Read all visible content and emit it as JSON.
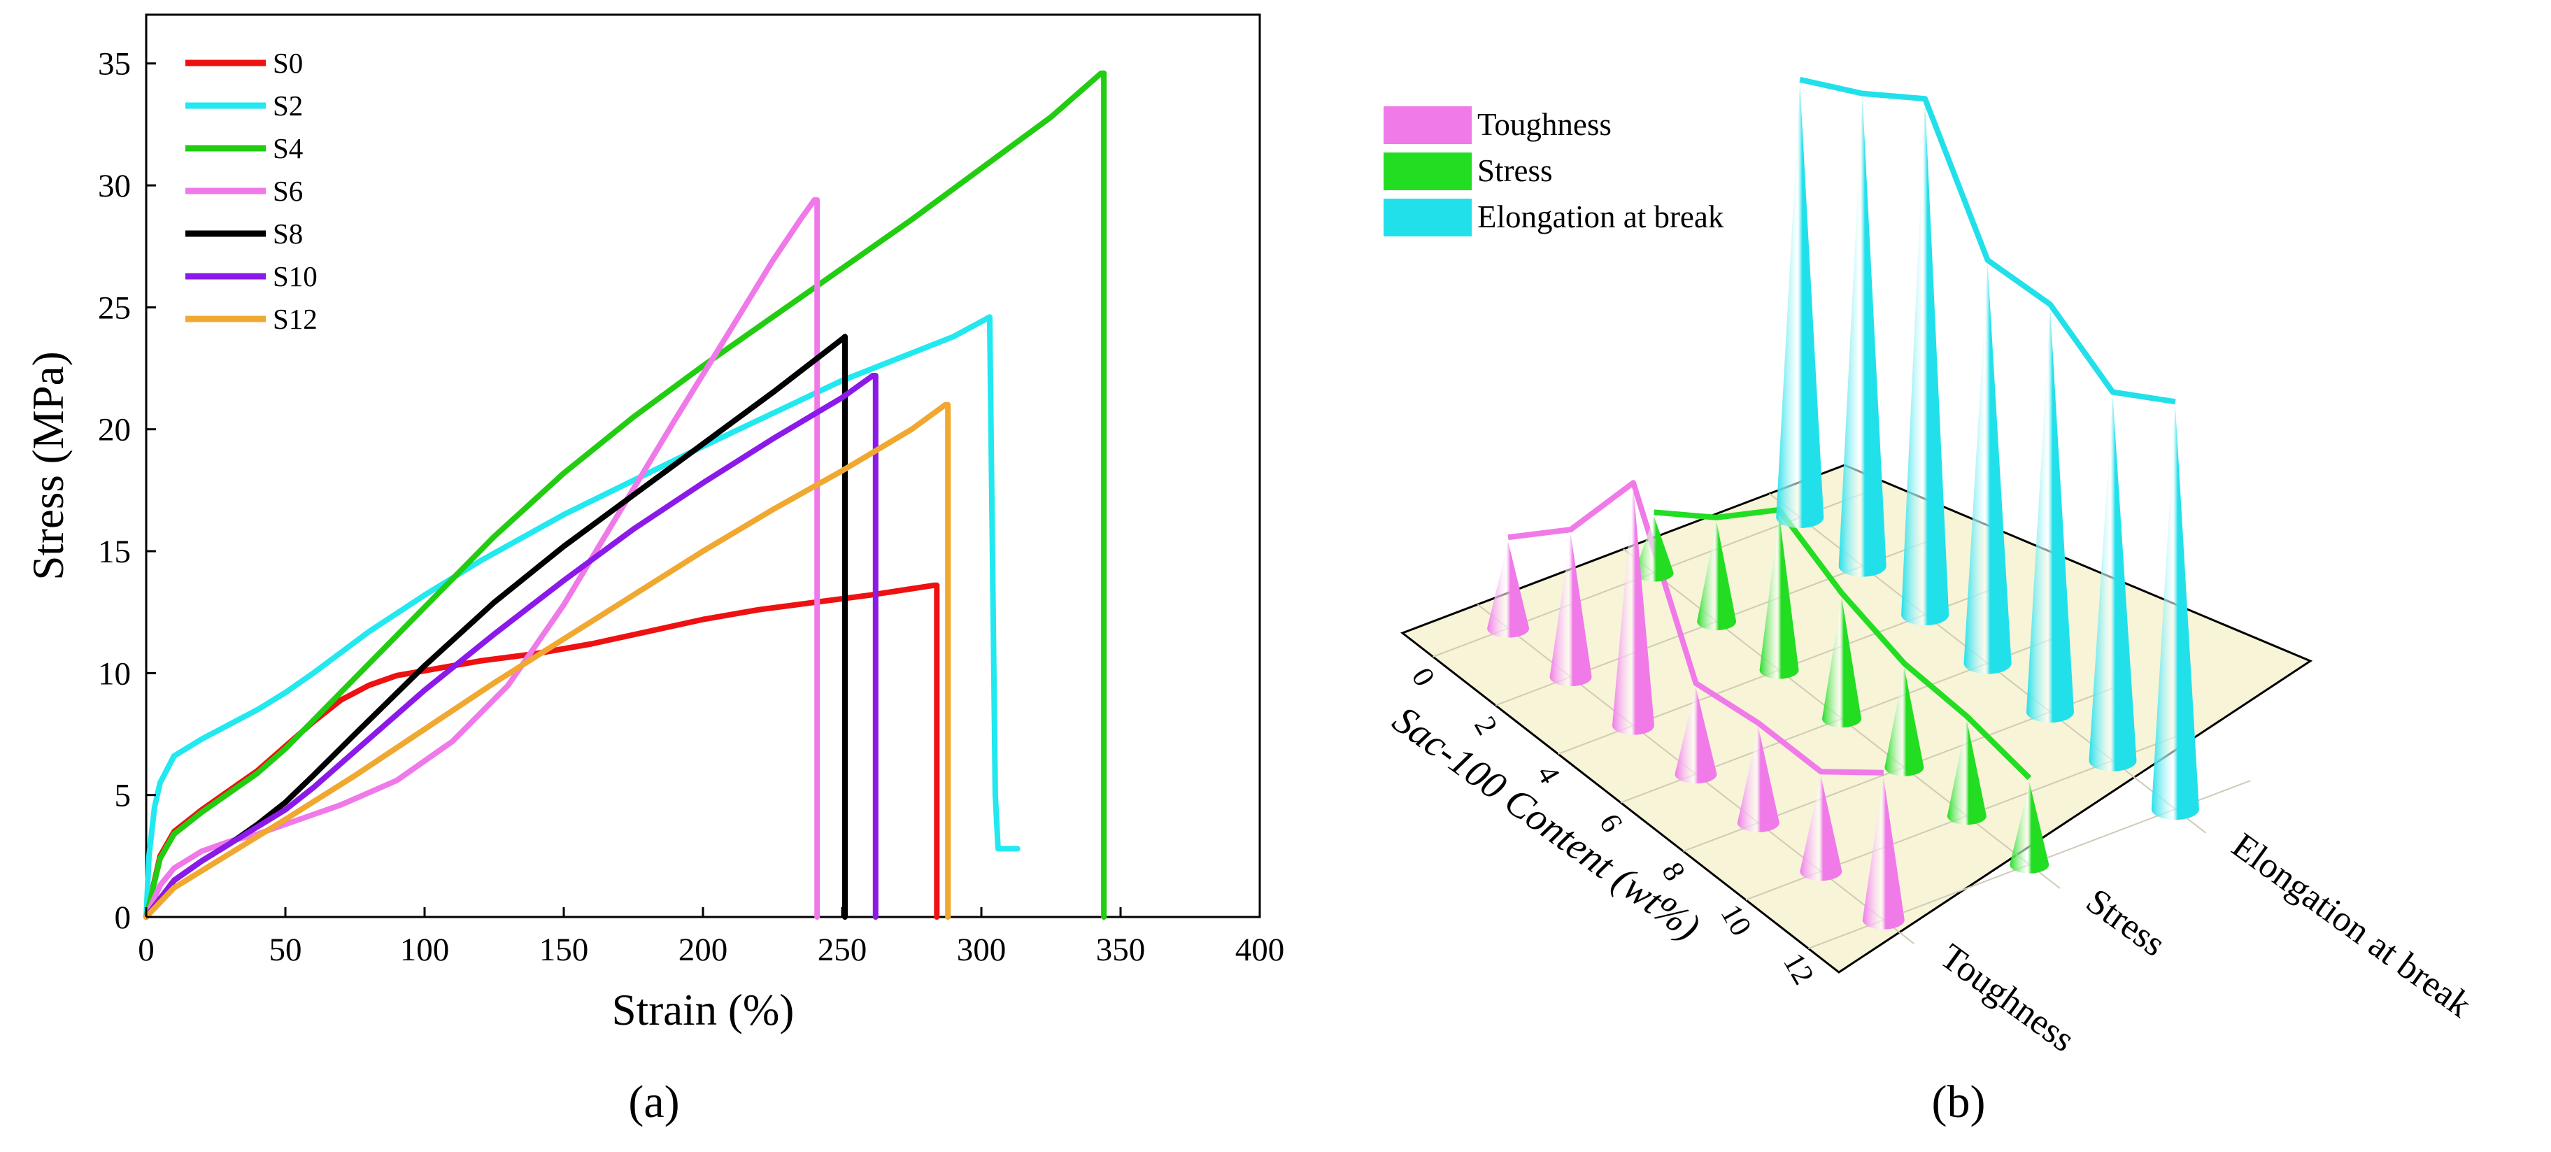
{
  "panel_labels": {
    "a": "(a)",
    "b": "(b)"
  },
  "chart_data": [
    {
      "type": "line",
      "title": "",
      "xlabel": "Strain (%)",
      "ylabel": "Stress (MPa)",
      "xlim": [
        0,
        400
      ],
      "ylim": [
        0,
        37
      ],
      "xticks": [
        0,
        50,
        100,
        150,
        200,
        250,
        300,
        350,
        400
      ],
      "yticks": [
        0,
        5,
        10,
        15,
        20,
        25,
        30,
        35
      ],
      "grid": false,
      "legend_position": "top-left",
      "series": [
        {
          "name": "S0",
          "color": "#ee1111",
          "x": [
            0,
            5,
            10,
            20,
            30,
            40,
            50,
            60,
            70,
            80,
            90,
            100,
            120,
            140,
            160,
            180,
            200,
            220,
            240,
            260,
            283,
            284,
            284
          ],
          "y": [
            0,
            2.5,
            3.5,
            4.4,
            5.2,
            6.0,
            7.0,
            8.0,
            8.9,
            9.5,
            9.9,
            10.1,
            10.5,
            10.8,
            11.2,
            11.7,
            12.2,
            12.6,
            12.9,
            13.2,
            13.6,
            13.6,
            0
          ]
        },
        {
          "name": "S2",
          "color": "#22e8f0",
          "x": [
            0,
            1,
            3,
            5,
            10,
            20,
            30,
            40,
            50,
            60,
            80,
            100,
            120,
            150,
            200,
            250,
            290,
            303,
            305,
            306,
            313
          ],
          "y": [
            0,
            2.5,
            4.5,
            5.5,
            6.6,
            7.3,
            7.9,
            8.5,
            9.2,
            10.0,
            11.7,
            13.2,
            14.6,
            16.5,
            19.3,
            22.0,
            23.8,
            24.6,
            5,
            2.8,
            2.8
          ]
        },
        {
          "name": "S4",
          "color": "#22cc11",
          "x": [
            0,
            5,
            10,
            20,
            30,
            40,
            50,
            75,
            100,
            125,
            150,
            175,
            200,
            225,
            250,
            275,
            300,
            325,
            343,
            344,
            344
          ],
          "y": [
            0,
            2.4,
            3.4,
            4.3,
            5.1,
            5.9,
            6.9,
            9.8,
            12.7,
            15.6,
            18.2,
            20.5,
            22.6,
            24.6,
            26.6,
            28.6,
            30.7,
            32.8,
            34.6,
            34.6,
            0
          ]
        },
        {
          "name": "S6",
          "color": "#f079ea",
          "x": [
            0,
            5,
            10,
            20,
            30,
            40,
            50,
            70,
            90,
            110,
            130,
            150,
            170,
            190,
            210,
            225,
            235,
            240,
            241,
            241
          ],
          "y": [
            0,
            1.3,
            2.0,
            2.7,
            3.1,
            3.4,
            3.8,
            4.6,
            5.6,
            7.2,
            9.5,
            12.8,
            16.6,
            20.4,
            24.1,
            26.9,
            28.6,
            29.4,
            29.4,
            0
          ]
        },
        {
          "name": "S8",
          "color": "#000000",
          "x": [
            0,
            10,
            20,
            30,
            40,
            50,
            60,
            75,
            100,
            125,
            150,
            175,
            200,
            225,
            250,
            251,
            251
          ],
          "y": [
            0,
            1.5,
            2.3,
            3.0,
            3.8,
            4.7,
            5.8,
            7.5,
            10.3,
            12.9,
            15.2,
            17.3,
            19.4,
            21.5,
            23.7,
            23.8,
            0
          ]
        },
        {
          "name": "S10",
          "color": "#8b1ae8",
          "x": [
            0,
            10,
            20,
            30,
            40,
            50,
            60,
            75,
            100,
            125,
            150,
            175,
            200,
            225,
            250,
            261,
            262,
            262
          ],
          "y": [
            0,
            1.5,
            2.3,
            3.0,
            3.7,
            4.4,
            5.3,
            6.8,
            9.3,
            11.6,
            13.8,
            15.9,
            17.8,
            19.6,
            21.3,
            22.2,
            22.2,
            0
          ]
        },
        {
          "name": "S12",
          "color": "#f0a830",
          "x": [
            0,
            10,
            20,
            30,
            40,
            50,
            75,
            100,
            125,
            150,
            175,
            200,
            225,
            250,
            275,
            287,
            288,
            288
          ],
          "y": [
            0,
            1.2,
            1.9,
            2.6,
            3.3,
            4.0,
            5.8,
            7.7,
            9.6,
            11.4,
            13.2,
            15.0,
            16.7,
            18.3,
            20.0,
            21.0,
            21.0,
            0
          ]
        }
      ]
    },
    {
      "type": "3d-cone",
      "title": "",
      "xlabel": "Sac-100 Content (wt%)",
      "categories_x": [
        0,
        2,
        4,
        6,
        8,
        10,
        12
      ],
      "categories_y": [
        "Toughness",
        "Stress",
        "Elongation at break"
      ],
      "legend_position": "top-left",
      "series": [
        {
          "name": "Toughness",
          "color": "#f07ae8",
          "values": [
            0.2,
            0.33,
            0.55,
            0.2,
            0.22,
            0.22,
            0.33
          ]
        },
        {
          "name": "Stress",
          "color": "#22dd22",
          "values": [
            0.13,
            0.23,
            0.36,
            0.28,
            0.23,
            0.22,
            0.19
          ]
        },
        {
          "name": "Elongation at break",
          "color": "#22e0ea",
          "values": [
            1.0,
            1.08,
            1.18,
            0.92,
            0.93,
            0.84,
            0.93
          ]
        }
      ]
    }
  ]
}
